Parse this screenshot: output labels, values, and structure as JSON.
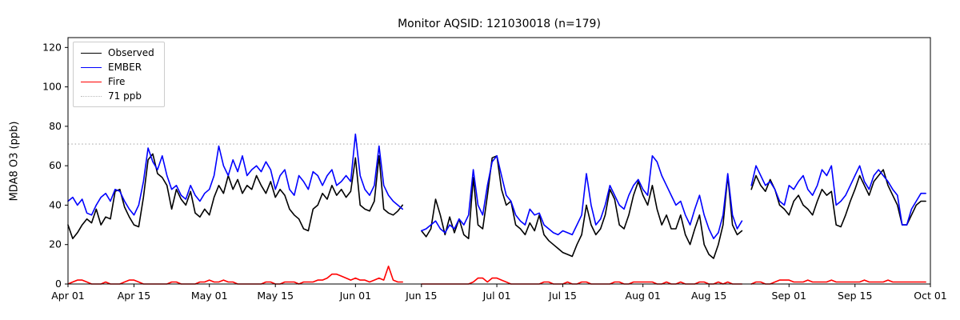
{
  "header": {
    "title": "Monitor AQSID: 121030018 (n=179)"
  },
  "axes": {
    "ylabel": "MDA8 O3 (ppb)"
  },
  "legend": {
    "items": [
      {
        "label": "Observed",
        "color": "#000000",
        "style": "solid"
      },
      {
        "label": "EMBER",
        "color": "#0000ff",
        "style": "solid"
      },
      {
        "label": "Fire",
        "color": "#ff0000",
        "style": "solid"
      },
      {
        "label": "71 ppb",
        "color": "#bbbbbb",
        "style": "dotted"
      }
    ],
    "position": "upper left"
  },
  "chart_data": {
    "type": "line",
    "title": "Monitor AQSID: 121030018 (n=179)",
    "xlabel": "",
    "ylabel": "MDA8 O3 (ppb)",
    "ylim": [
      0,
      125
    ],
    "yticks": [
      0,
      20,
      40,
      60,
      80,
      100,
      120
    ],
    "xtick_labels": [
      "Apr 01",
      "Apr 15",
      "May 01",
      "May 15",
      "Jun 01",
      "Jun 15",
      "Jul 01",
      "Jul 15",
      "Aug 01",
      "Aug 15",
      "Sep 01",
      "Sep 15",
      "Oct 01"
    ],
    "xtick_days": [
      0,
      14,
      30,
      44,
      61,
      75,
      91,
      105,
      122,
      136,
      153,
      167,
      183
    ],
    "total_days": 183,
    "x_start_date": "Apr 01",
    "x_end_date": "Oct 01",
    "n_observations": 179,
    "grid": false,
    "legend_position": "upper left",
    "threshold": {
      "value": 71,
      "label": "71 ppb",
      "color": "#bbbbbb",
      "style": "dotted"
    },
    "series": [
      {
        "name": "Observed",
        "color": "#000000",
        "values": [
          30,
          23,
          26,
          30,
          33,
          31,
          38,
          30,
          34,
          33,
          47,
          48,
          39,
          34,
          30,
          29,
          44,
          63,
          66,
          56,
          54,
          50,
          38,
          48,
          43,
          40,
          47,
          36,
          34,
          38,
          35,
          44,
          50,
          46,
          55,
          48,
          53,
          46,
          50,
          48,
          55,
          50,
          46,
          52,
          44,
          48,
          45,
          38,
          35,
          33,
          28,
          27,
          38,
          40,
          46,
          43,
          50,
          45,
          48,
          44,
          47,
          64,
          40,
          38,
          37,
          42,
          65,
          38,
          36,
          35,
          37,
          40,
          null,
          null,
          null,
          27,
          24,
          28,
          43,
          35,
          25,
          34,
          26,
          33,
          25,
          23,
          54,
          30,
          28,
          45,
          64,
          65,
          48,
          40,
          42,
          30,
          28,
          25,
          31,
          27,
          35,
          25,
          22,
          20,
          18,
          16,
          15,
          14,
          20,
          25,
          40,
          30,
          25,
          28,
          35,
          48,
          43,
          30,
          28,
          35,
          45,
          52,
          45,
          40,
          50,
          38,
          30,
          35,
          28,
          28,
          35,
          25,
          20,
          28,
          35,
          20,
          15,
          13,
          20,
          30,
          55,
          30,
          25,
          27,
          null,
          48,
          55,
          50,
          47,
          53,
          48,
          40,
          38,
          35,
          42,
          45,
          40,
          38,
          35,
          42,
          48,
          45,
          47,
          30,
          29,
          35,
          42,
          48,
          55,
          50,
          45,
          52,
          55,
          58,
          50,
          45,
          40,
          30,
          30,
          35,
          40,
          42,
          42
        ]
      },
      {
        "name": "EMBER",
        "color": "#0000ff",
        "values": [
          42,
          44,
          40,
          43,
          36,
          35,
          40,
          44,
          46,
          42,
          48,
          47,
          42,
          38,
          35,
          40,
          52,
          69,
          62,
          58,
          65,
          55,
          48,
          50,
          45,
          43,
          50,
          45,
          42,
          46,
          48,
          55,
          70,
          60,
          55,
          63,
          57,
          65,
          55,
          58,
          60,
          57,
          62,
          58,
          48,
          55,
          58,
          48,
          45,
          55,
          52,
          48,
          57,
          55,
          50,
          55,
          58,
          50,
          52,
          55,
          52,
          76,
          55,
          48,
          45,
          50,
          70,
          50,
          45,
          42,
          40,
          38,
          null,
          null,
          null,
          27,
          28,
          30,
          32,
          28,
          26,
          30,
          28,
          33,
          30,
          35,
          58,
          40,
          35,
          50,
          62,
          65,
          55,
          45,
          42,
          35,
          32,
          30,
          38,
          35,
          36,
          30,
          28,
          26,
          25,
          27,
          26,
          25,
          30,
          35,
          56,
          40,
          30,
          33,
          40,
          50,
          45,
          40,
          38,
          45,
          50,
          53,
          48,
          45,
          65,
          62,
          55,
          50,
          45,
          40,
          42,
          35,
          30,
          38,
          45,
          35,
          28,
          23,
          26,
          35,
          56,
          35,
          28,
          32,
          null,
          50,
          60,
          55,
          50,
          52,
          48,
          42,
          40,
          50,
          48,
          52,
          55,
          48,
          45,
          50,
          58,
          55,
          60,
          40,
          42,
          45,
          50,
          55,
          60,
          52,
          48,
          55,
          58,
          55,
          52,
          48,
          45,
          30,
          30,
          38,
          42,
          46,
          46
        ]
      },
      {
        "name": "Fire",
        "color": "#ff0000",
        "values": [
          0,
          1,
          2,
          2,
          1,
          0,
          0,
          0,
          1,
          0,
          0,
          0,
          1,
          2,
          2,
          1,
          0,
          0,
          0,
          0,
          0,
          0,
          1,
          1,
          0,
          0,
          0,
          0,
          1,
          1,
          2,
          1,
          1,
          2,
          1,
          1,
          0,
          0,
          0,
          0,
          0,
          0,
          1,
          1,
          0,
          0,
          1,
          1,
          1,
          0,
          1,
          1,
          1,
          2,
          2,
          3,
          5,
          5,
          4,
          3,
          2,
          3,
          2,
          2,
          1,
          2,
          3,
          2,
          9,
          2,
          1,
          1,
          null,
          null,
          null,
          0,
          0,
          0,
          0,
          0,
          0,
          0,
          0,
          0,
          0,
          0,
          1,
          3,
          3,
          1,
          3,
          3,
          2,
          1,
          0,
          0,
          0,
          0,
          0,
          0,
          0,
          1,
          1,
          0,
          0,
          0,
          1,
          0,
          0,
          1,
          1,
          0,
          0,
          0,
          0,
          0,
          1,
          1,
          0,
          0,
          1,
          1,
          1,
          1,
          1,
          0,
          0,
          1,
          0,
          0,
          1,
          0,
          0,
          0,
          1,
          1,
          0,
          0,
          1,
          0,
          1,
          0,
          0,
          0,
          null,
          0,
          1,
          1,
          0,
          0,
          1,
          2,
          2,
          2,
          1,
          1,
          1,
          2,
          1,
          1,
          1,
          1,
          2,
          1,
          1,
          1,
          1,
          1,
          1,
          2,
          1,
          1,
          1,
          1,
          2,
          1,
          1,
          1,
          1,
          1,
          1,
          1,
          1
        ]
      }
    ]
  }
}
